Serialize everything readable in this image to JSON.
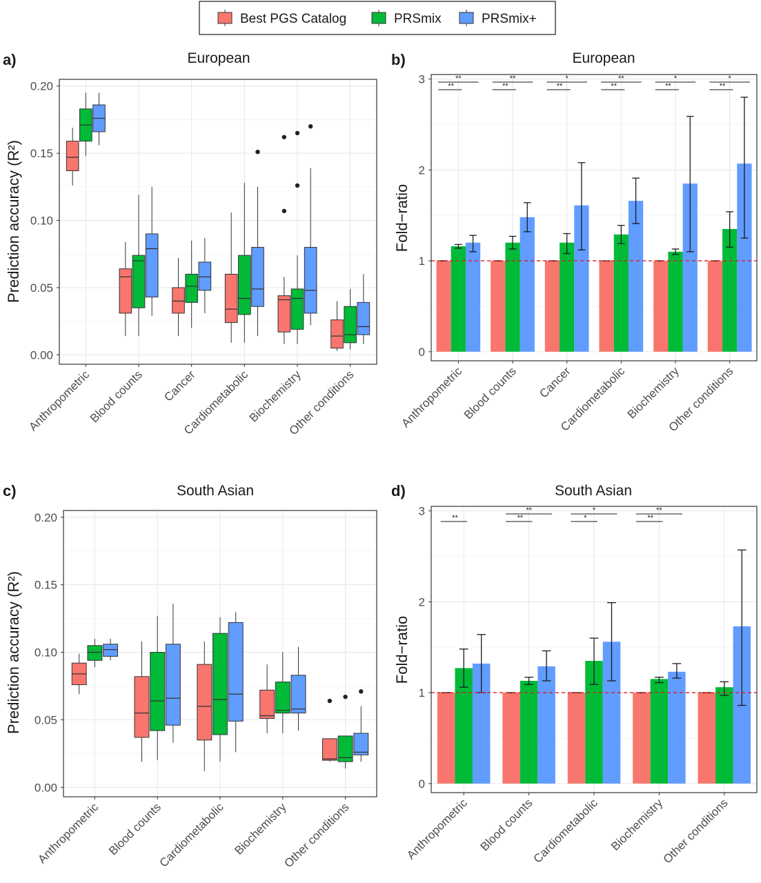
{
  "legend": {
    "items": [
      {
        "label": "Best PGS Catalog",
        "color": "#F8766D"
      },
      {
        "label": "PRSmix",
        "color": "#00BA38"
      },
      {
        "label": "PRSmix+",
        "color": "#619CFF"
      }
    ]
  },
  "chart_data": [
    {
      "panel": "a)",
      "type": "box",
      "title": "European",
      "ylabel": "Prediction accuracy (R²)",
      "ylim": [
        -0.007,
        0.205
      ],
      "yticks": [
        "0.00",
        "0.05",
        "0.10",
        "0.15",
        "0.20"
      ],
      "ytick_values": [
        0,
        0.05,
        0.1,
        0.15,
        0.2
      ],
      "categories": [
        "Anthropometric",
        "Blood counts",
        "Cancer",
        "Cardiometabolic",
        "Biochemistry",
        "Other conditions"
      ],
      "series": [
        {
          "name": "Best PGS Catalog",
          "color": "#F8766D",
          "boxes": [
            {
              "min": 0.126,
              "q1": 0.137,
              "median": 0.147,
              "q3": 0.159,
              "max": 0.169,
              "outliers": []
            },
            {
              "min": 0.014,
              "q1": 0.031,
              "median": 0.058,
              "q3": 0.064,
              "max": 0.084,
              "outliers": []
            },
            {
              "min": 0.014,
              "q1": 0.031,
              "median": 0.04,
              "q3": 0.05,
              "max": 0.072,
              "outliers": []
            },
            {
              "min": 0.009,
              "q1": 0.024,
              "median": 0.034,
              "q3": 0.06,
              "max": 0.106,
              "outliers": []
            },
            {
              "min": 0.008,
              "q1": 0.017,
              "median": 0.041,
              "q3": 0.044,
              "max": 0.058,
              "outliers": [
                0.107,
                0.162
              ]
            },
            {
              "min": 0.003,
              "q1": 0.005,
              "median": 0.014,
              "q3": 0.026,
              "max": 0.04,
              "outliers": []
            }
          ]
        },
        {
          "name": "PRSmix",
          "color": "#00BA38",
          "boxes": [
            {
              "min": 0.148,
              "q1": 0.159,
              "median": 0.171,
              "q3": 0.183,
              "max": 0.195,
              "outliers": []
            },
            {
              "min": 0.014,
              "q1": 0.035,
              "median": 0.07,
              "q3": 0.074,
              "max": 0.119,
              "outliers": []
            },
            {
              "min": 0.02,
              "q1": 0.039,
              "median": 0.051,
              "q3": 0.06,
              "max": 0.085,
              "outliers": []
            },
            {
              "min": 0.009,
              "q1": 0.03,
              "median": 0.042,
              "q3": 0.074,
              "max": 0.128,
              "outliers": []
            },
            {
              "min": 0.008,
              "q1": 0.019,
              "median": 0.042,
              "q3": 0.049,
              "max": 0.074,
              "outliers": [
                0.126,
                0.165
              ]
            },
            {
              "min": 0.004,
              "q1": 0.009,
              "median": 0.015,
              "q3": 0.036,
              "max": 0.049,
              "outliers": []
            }
          ]
        },
        {
          "name": "PRSmix+",
          "color": "#619CFF",
          "boxes": [
            {
              "min": 0.156,
              "q1": 0.166,
              "median": 0.176,
              "q3": 0.186,
              "max": 0.195,
              "outliers": []
            },
            {
              "min": 0.029,
              "q1": 0.043,
              "median": 0.079,
              "q3": 0.09,
              "max": 0.125,
              "outliers": []
            },
            {
              "min": 0.031,
              "q1": 0.048,
              "median": 0.058,
              "q3": 0.069,
              "max": 0.087,
              "outliers": []
            },
            {
              "min": 0.014,
              "q1": 0.036,
              "median": 0.049,
              "q3": 0.08,
              "max": 0.125,
              "outliers": [
                0.151
              ]
            },
            {
              "min": 0.022,
              "q1": 0.031,
              "median": 0.048,
              "q3": 0.08,
              "max": 0.139,
              "outliers": [
                0.17
              ]
            },
            {
              "min": 0.008,
              "q1": 0.015,
              "median": 0.021,
              "q3": 0.039,
              "max": 0.06,
              "outliers": []
            }
          ]
        }
      ]
    },
    {
      "panel": "b)",
      "type": "bar",
      "title": "European",
      "ylabel": "Fold−ratio",
      "ylim": [
        -0.1,
        3.05
      ],
      "yticks": [
        "0",
        "1",
        "2",
        "3"
      ],
      "ytick_values": [
        0,
        1,
        2,
        3
      ],
      "reference_line": 1,
      "categories": [
        "Anthropometric",
        "Blood counts",
        "Cancer",
        "Cardiometabolic",
        "Biochemistry",
        "Other conditions"
      ],
      "series": [
        {
          "name": "Best PGS Catalog",
          "color": "#F8766D",
          "values": [
            1.0,
            1.0,
            1.0,
            1.0,
            1.0,
            1.0
          ],
          "err_low": [
            1.0,
            1.0,
            1.0,
            1.0,
            1.0,
            1.0
          ],
          "err_high": [
            1.0,
            1.0,
            1.0,
            1.0,
            1.0,
            1.0
          ]
        },
        {
          "name": "PRSmix",
          "color": "#00BA38",
          "values": [
            1.16,
            1.2,
            1.2,
            1.29,
            1.1,
            1.35
          ],
          "err_low": [
            1.14,
            1.13,
            1.08,
            1.19,
            1.07,
            1.15
          ],
          "err_high": [
            1.18,
            1.27,
            1.3,
            1.39,
            1.13,
            1.54
          ]
        },
        {
          "name": "PRSmix+",
          "color": "#619CFF",
          "values": [
            1.2,
            1.48,
            1.61,
            1.66,
            1.85,
            2.07
          ],
          "err_low": [
            1.1,
            1.32,
            1.12,
            1.41,
            1.1,
            1.25
          ],
          "err_high": [
            1.28,
            1.64,
            2.08,
            1.91,
            2.59,
            2.8
          ]
        }
      ],
      "significance": [
        {
          "group": 0,
          "top": "**",
          "bottom": "**",
          "top_to": 2,
          "bottom_to": 1
        },
        {
          "group": 1,
          "top": "**",
          "bottom": "**",
          "top_to": 2,
          "bottom_to": 1
        },
        {
          "group": 2,
          "top": "*",
          "bottom": "**",
          "top_to": 2,
          "bottom_to": 1
        },
        {
          "group": 3,
          "top": "**",
          "bottom": "**",
          "top_to": 2,
          "bottom_to": 1
        },
        {
          "group": 4,
          "top": "*",
          "bottom": "**",
          "top_to": 2,
          "bottom_to": 1
        },
        {
          "group": 5,
          "top": "*",
          "bottom": "**",
          "top_to": 2,
          "bottom_to": 1
        }
      ]
    },
    {
      "panel": "c)",
      "type": "box",
      "title": "South Asian",
      "ylabel": "Prediction accuracy (R²)",
      "ylim": [
        -0.007,
        0.205
      ],
      "yticks": [
        "0.00",
        "0.05",
        "0.10",
        "0.15",
        "0.20"
      ],
      "ytick_values": [
        0,
        0.05,
        0.1,
        0.15,
        0.2
      ],
      "categories": [
        "Anthropometric",
        "Blood counts",
        "Cardiometabolic",
        "Biochemistry",
        "Other conditions"
      ],
      "series": [
        {
          "name": "Best PGS Catalog",
          "color": "#F8766D",
          "boxes": [
            {
              "min": 0.069,
              "q1": 0.076,
              "median": 0.084,
              "q3": 0.092,
              "max": 0.099,
              "outliers": []
            },
            {
              "min": 0.019,
              "q1": 0.037,
              "median": 0.055,
              "q3": 0.082,
              "max": 0.108,
              "outliers": []
            },
            {
              "min": 0.012,
              "q1": 0.035,
              "median": 0.06,
              "q3": 0.091,
              "max": 0.108,
              "outliers": []
            },
            {
              "min": 0.04,
              "q1": 0.051,
              "median": 0.053,
              "q3": 0.072,
              "max": 0.091,
              "outliers": []
            },
            {
              "min": 0.019,
              "q1": 0.02,
              "median": 0.021,
              "q3": 0.036,
              "max": 0.036,
              "outliers": [
                0.064
              ]
            }
          ]
        },
        {
          "name": "PRSmix",
          "color": "#00BA38",
          "boxes": [
            {
              "min": 0.089,
              "q1": 0.094,
              "median": 0.1,
              "q3": 0.105,
              "max": 0.11,
              "outliers": []
            },
            {
              "min": 0.02,
              "q1": 0.042,
              "median": 0.064,
              "q3": 0.1,
              "max": 0.127,
              "outliers": []
            },
            {
              "min": 0.019,
              "q1": 0.039,
              "median": 0.065,
              "q3": 0.114,
              "max": 0.126,
              "outliers": []
            },
            {
              "min": 0.04,
              "q1": 0.055,
              "median": 0.057,
              "q3": 0.078,
              "max": 0.1,
              "outliers": []
            },
            {
              "min": 0.014,
              "q1": 0.019,
              "median": 0.022,
              "q3": 0.038,
              "max": 0.038,
              "outliers": [
                0.067
              ]
            }
          ]
        },
        {
          "name": "PRSmix+",
          "color": "#619CFF",
          "boxes": [
            {
              "min": 0.094,
              "q1": 0.097,
              "median": 0.102,
              "q3": 0.106,
              "max": 0.11,
              "outliers": []
            },
            {
              "min": 0.033,
              "q1": 0.046,
              "median": 0.066,
              "q3": 0.106,
              "max": 0.136,
              "outliers": []
            },
            {
              "min": 0.026,
              "q1": 0.049,
              "median": 0.069,
              "q3": 0.122,
              "max": 0.13,
              "outliers": []
            },
            {
              "min": 0.042,
              "q1": 0.055,
              "median": 0.058,
              "q3": 0.083,
              "max": 0.104,
              "outliers": []
            },
            {
              "min": 0.019,
              "q1": 0.024,
              "median": 0.026,
              "q3": 0.04,
              "max": 0.06,
              "outliers": [
                0.071
              ]
            }
          ]
        }
      ]
    },
    {
      "panel": "d)",
      "type": "bar",
      "title": "South Asian",
      "ylabel": "Fold−ratio",
      "ylim": [
        -0.1,
        3.05
      ],
      "yticks": [
        "0",
        "1",
        "2",
        "3"
      ],
      "ytick_values": [
        0,
        1,
        2,
        3
      ],
      "reference_line": 1,
      "categories": [
        "Anthropometric",
        "Blood counts",
        "Cardiometabolic",
        "Biochemistry",
        "Other conditions"
      ],
      "series": [
        {
          "name": "Best PGS Catalog",
          "color": "#F8766D",
          "values": [
            1.0,
            1.0,
            1.0,
            1.0,
            1.0
          ],
          "err_low": [
            1.0,
            1.0,
            1.0,
            1.0,
            1.0
          ],
          "err_high": [
            1.0,
            1.0,
            1.0,
            1.0,
            1.0
          ]
        },
        {
          "name": "PRSmix",
          "color": "#00BA38",
          "values": [
            1.27,
            1.13,
            1.35,
            1.15,
            1.06
          ],
          "err_low": [
            1.06,
            1.09,
            1.09,
            1.11,
            0.97
          ],
          "err_high": [
            1.48,
            1.17,
            1.6,
            1.17,
            1.12
          ]
        },
        {
          "name": "PRSmix+",
          "color": "#619CFF",
          "values": [
            1.32,
            1.29,
            1.56,
            1.23,
            1.73
          ],
          "err_low": [
            1.0,
            1.13,
            1.13,
            1.16,
            0.86
          ],
          "err_high": [
            1.64,
            1.46,
            1.99,
            1.32,
            2.57
          ]
        }
      ],
      "significance": [
        {
          "group": 0,
          "top": null,
          "bottom": "**",
          "top_to": 2,
          "bottom_to": 1
        },
        {
          "group": 1,
          "top": "**",
          "bottom": "**",
          "top_to": 2,
          "bottom_to": 1
        },
        {
          "group": 2,
          "top": "*",
          "bottom": "*",
          "top_to": 2,
          "bottom_to": 1
        },
        {
          "group": 3,
          "top": "**",
          "bottom": "**",
          "top_to": 2,
          "bottom_to": 1
        },
        {
          "group": 4,
          "top": null,
          "bottom": null,
          "top_to": 2,
          "bottom_to": 1
        }
      ]
    }
  ]
}
